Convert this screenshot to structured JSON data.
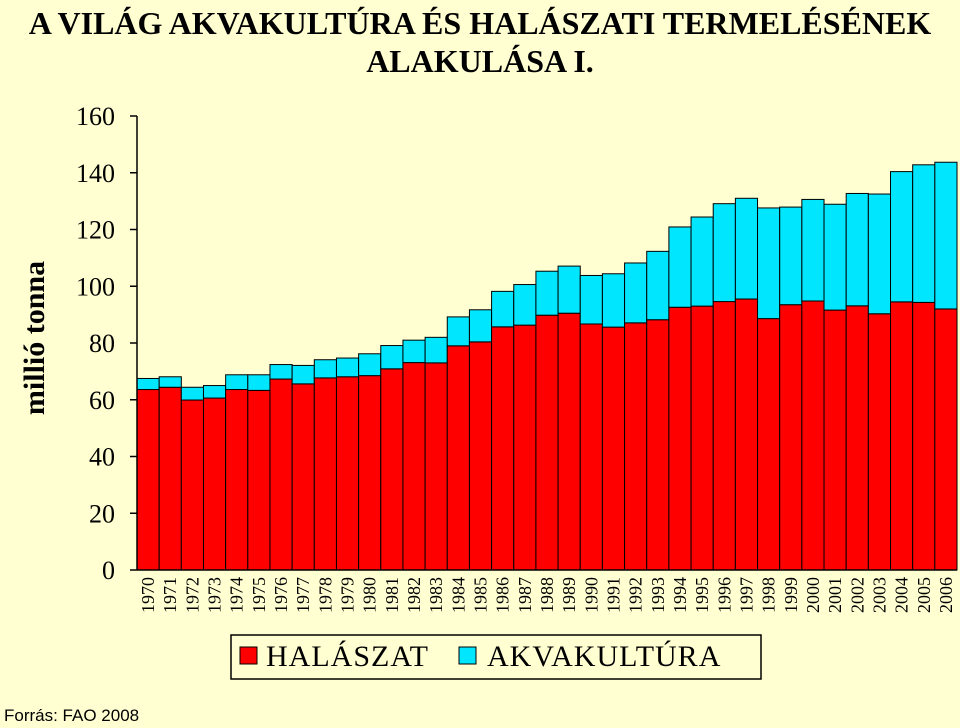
{
  "title_line1": "A VILÁG AKVAKULTÚRA ÉS HALÁSZATI TERMELÉSÉNEK",
  "title_line2": "ALAKULÁSA I.",
  "source": "Forrás: FAO 2008",
  "chart_data": {
    "type": "bar",
    "stacked": true,
    "ylabel": "millió tonna",
    "ylim": [
      0,
      160
    ],
    "yticks": [
      0,
      20,
      40,
      60,
      80,
      100,
      120,
      140,
      160
    ],
    "grid": false,
    "legend_position": "bottom",
    "categories": [
      "1970",
      "1971",
      "1972",
      "1973",
      "1974",
      "1975",
      "1976",
      "1977",
      "1978",
      "1979",
      "1980",
      "1981",
      "1982",
      "1983",
      "1984",
      "1985",
      "1986",
      "1987",
      "1988",
      "1989",
      "1990",
      "1991",
      "1992",
      "1993",
      "1994",
      "1995",
      "1996",
      "1997",
      "1998",
      "1999",
      "2000",
      "2001",
      "2002",
      "2003",
      "2004",
      "2005",
      "2006"
    ],
    "series": [
      {
        "name": "HALÁSZAT",
        "color": "#ff0000",
        "values": [
          63.6,
          64.4,
          59.9,
          60.6,
          63.6,
          63.3,
          67.3,
          65.6,
          67.7,
          68.1,
          68.5,
          70.9,
          73.1,
          73.0,
          79.0,
          80.4,
          85.7,
          86.3,
          89.8,
          90.5,
          86.7,
          85.6,
          87.1,
          88.2,
          92.6,
          93.0,
          94.6,
          95.5,
          88.6,
          93.5,
          94.8,
          91.6,
          93.1,
          90.3,
          94.5,
          94.3,
          92.0
        ]
      },
      {
        "name": "AKVAKULTÚRA",
        "color": "#00e6ff",
        "values": [
          3.9,
          3.7,
          4.5,
          4.4,
          5.2,
          5.5,
          5.1,
          6.5,
          6.4,
          6.6,
          7.7,
          8.2,
          7.9,
          9.0,
          10.2,
          11.3,
          12.5,
          14.3,
          15.5,
          16.6,
          17.1,
          18.8,
          21.1,
          24.1,
          28.3,
          31.4,
          34.5,
          35.5,
          39.0,
          34.4,
          35.8,
          37.3,
          39.6,
          42.2,
          45.9,
          48.5,
          51.7
        ]
      }
    ]
  }
}
